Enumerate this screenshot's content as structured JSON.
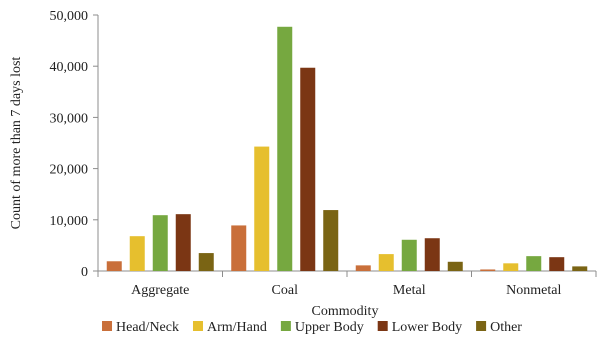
{
  "chart_data": {
    "type": "bar",
    "xlabel": "Commodity",
    "ylabel": "Count of more than 7 days lost",
    "ylim": [
      0,
      50000
    ],
    "yticks": [
      0,
      10000,
      20000,
      30000,
      40000,
      50000
    ],
    "ytick_labels": [
      "0",
      "10,000",
      "20,000",
      "30,000",
      "40,000",
      "50,000"
    ],
    "categories": [
      "Aggregate",
      "Coal",
      "Metal",
      "Nonmetal"
    ],
    "grid": false,
    "legend_position": "bottom",
    "series": [
      {
        "name": "Head/Neck",
        "color": "#c96f3a",
        "values": [
          1900,
          8900,
          1100,
          300
        ]
      },
      {
        "name": "Arm/Hand",
        "color": "#e6bf2e",
        "values": [
          6800,
          24300,
          3300,
          1500
        ]
      },
      {
        "name": "Upper Body",
        "color": "#76a840",
        "values": [
          10900,
          47700,
          6100,
          2900
        ]
      },
      {
        "name": "Lower Body",
        "color": "#7b3614",
        "values": [
          11100,
          39700,
          6400,
          2700
        ]
      },
      {
        "name": "Other",
        "color": "#7a6414",
        "values": [
          3500,
          11900,
          1800,
          900
        ]
      }
    ]
  }
}
